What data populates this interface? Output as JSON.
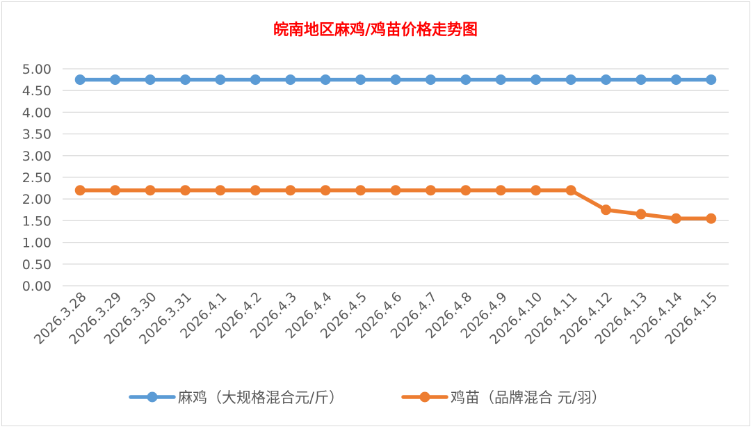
{
  "chart_data": {
    "type": "line",
    "title": "皖南地区麻鸡/鸡苗价格走势图",
    "xlabel": "",
    "ylabel": "",
    "ylim": [
      0,
      5
    ],
    "yticks": [
      "0.00",
      "0.50",
      "1.00",
      "1.50",
      "2.00",
      "2.50",
      "3.00",
      "3.50",
      "4.00",
      "4.50",
      "5.00"
    ],
    "grid": true,
    "legend_position": "bottom",
    "categories": [
      "2026.3.28",
      "2026.3.29",
      "2026.3.30",
      "2026.3.31",
      "2026.4.1",
      "2026.4.2",
      "2026.4.3",
      "2026.4.4",
      "2026.4.5",
      "2026.4.6",
      "2026.4.7",
      "2026.4.8",
      "2026.4.9",
      "2026.4.10",
      "2026.4.11",
      "2026.4.12",
      "2026.4.13",
      "2026.4.14",
      "2026.4.15"
    ],
    "series": [
      {
        "name": "麻鸡（大规格混合元/斤）",
        "color": "#5b9bd5",
        "values": [
          4.75,
          4.75,
          4.75,
          4.75,
          4.75,
          4.75,
          4.75,
          4.75,
          4.75,
          4.75,
          4.75,
          4.75,
          4.75,
          4.75,
          4.75,
          4.75,
          4.75,
          4.75,
          4.75
        ]
      },
      {
        "name": "鸡苗（品牌混合 元/羽）",
        "color": "#ed7d31",
        "values": [
          2.2,
          2.2,
          2.2,
          2.2,
          2.2,
          2.2,
          2.2,
          2.2,
          2.2,
          2.2,
          2.2,
          2.2,
          2.2,
          2.2,
          2.2,
          1.75,
          1.65,
          1.55,
          1.55
        ]
      }
    ]
  }
}
